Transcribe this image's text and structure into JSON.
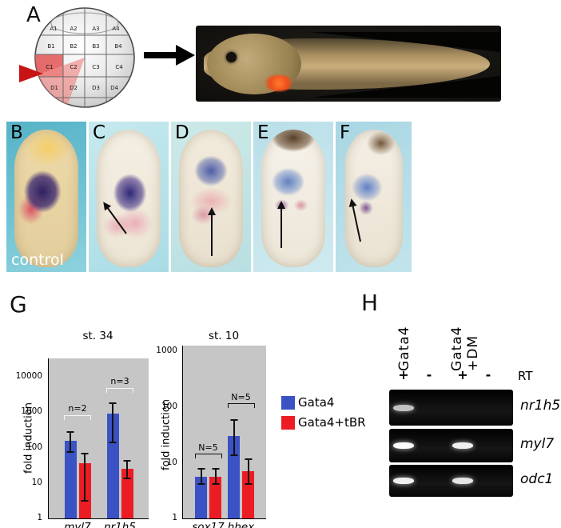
{
  "panels": {
    "a": "A",
    "b": "B",
    "c": "C",
    "d": "D",
    "e": "E",
    "f": "F",
    "g": "G",
    "h": "H",
    "control_label": "control"
  },
  "fate_map": {
    "cells": [
      "A1",
      "A2",
      "A3",
      "A4",
      "B1",
      "B2",
      "B3",
      "B4",
      "C1",
      "C2",
      "C3",
      "C4",
      "D1",
      "D2",
      "D3",
      "D4"
    ]
  },
  "chart_data": [
    {
      "type": "bar",
      "title": "st. 34",
      "ylabel": "fold induction",
      "yscale": "log",
      "ylim": [
        1,
        10000
      ],
      "yticks": [
        10000,
        1000,
        100,
        10,
        1
      ],
      "log_top": 4.5,
      "bracket_color": "#f5f5f5",
      "categories": [
        "myl7",
        "nr1h5"
      ],
      "series": [
        {
          "name": "Gata4",
          "color": "#3a52c4",
          "values": [
            150,
            900
          ],
          "err_low": [
            70,
            130
          ],
          "err_high": [
            280,
            1800
          ]
        },
        {
          "name": "Gata4+tBR",
          "color": "#ec1c24",
          "values": [
            35,
            25
          ],
          "err_low": [
            3,
            13
          ],
          "err_high": [
            70,
            45
          ]
        }
      ],
      "annotations": [
        {
          "text": "n=2",
          "y": 600
        },
        {
          "text": "n=3",
          "y": 3500
        }
      ]
    },
    {
      "type": "bar",
      "title": "st. 10",
      "ylabel": "fold induction",
      "yscale": "log",
      "ylim": [
        1,
        1000
      ],
      "yticks": [
        1000,
        100,
        10,
        1
      ],
      "log_top": 3.1,
      "bracket_color": "#111111",
      "categories": [
        "sox17",
        "hhex"
      ],
      "series": [
        {
          "name": "Gata4",
          "color": "#3a52c4",
          "values": [
            5.5,
            30
          ],
          "err_low": [
            4,
            13
          ],
          "err_high": [
            8,
            60
          ]
        },
        {
          "name": "Gata4+tBR",
          "color": "#ec1c24",
          "values": [
            5.5,
            7
          ],
          "err_low": [
            4,
            4
          ],
          "err_high": [
            8,
            12
          ]
        }
      ],
      "annotations": [
        {
          "text": "N=5",
          "y": 12
        },
        {
          "text": "N=5",
          "y": 95
        }
      ]
    }
  ],
  "legend": {
    "items": [
      {
        "label": "Gata4",
        "color": "#3a52c4"
      },
      {
        "label": "Gata4+tBR",
        "color": "#ec1c24"
      }
    ]
  },
  "gel": {
    "rt_label": "RT",
    "groups": [
      {
        "label_lines": [
          "Gata4"
        ]
      },
      {
        "label_lines": [
          "Gata4",
          "+DM"
        ]
      }
    ],
    "lanes": [
      "+",
      "-",
      "+",
      "-"
    ],
    "rows": [
      {
        "gene": "nr1h5",
        "bands": [
          0.75,
          0,
          0,
          0
        ]
      },
      {
        "gene": "myl7",
        "bands": [
          1,
          0,
          0.95,
          0
        ]
      },
      {
        "gene": "odc1",
        "bands": [
          0.95,
          0,
          0.9,
          0
        ]
      }
    ]
  },
  "colors": {
    "gata4_blue": "#3a52c4",
    "tbr_red": "#ec1c24",
    "chart_bg": "#c6c6c6"
  }
}
